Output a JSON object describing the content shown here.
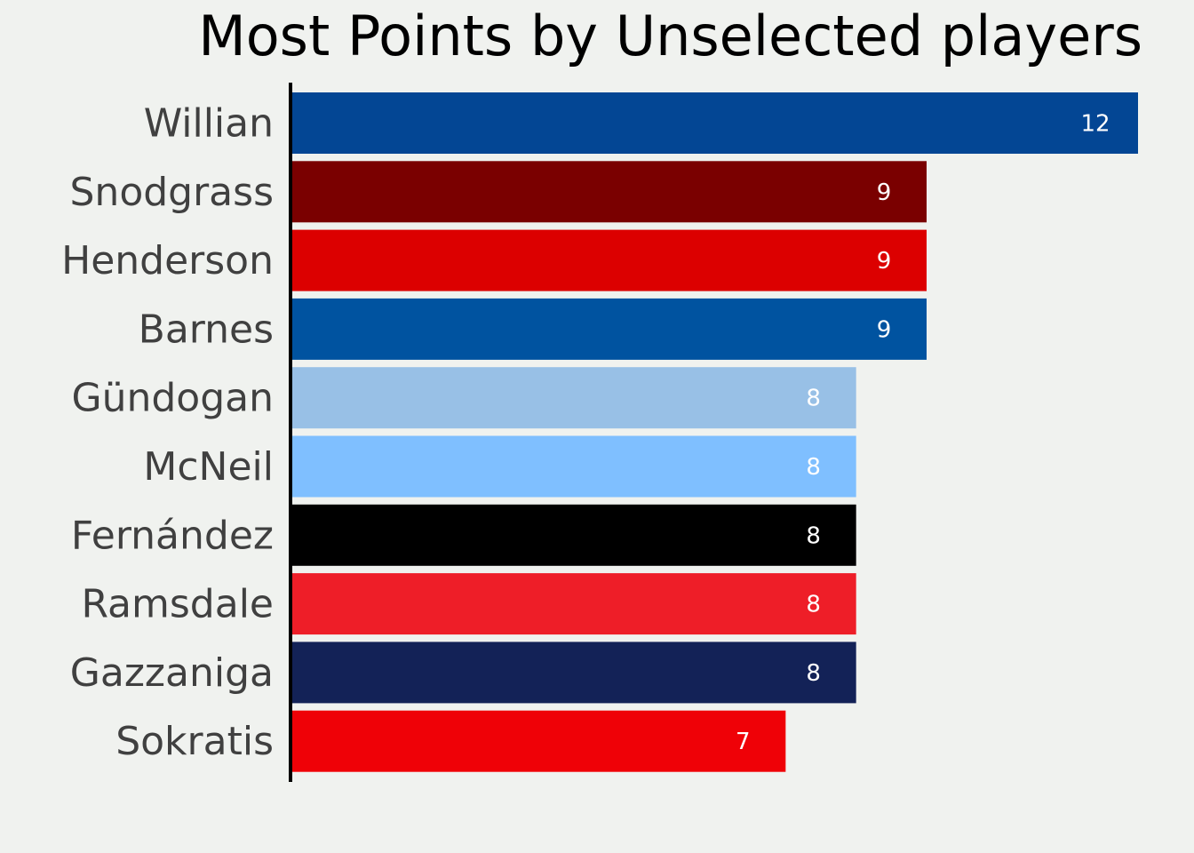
{
  "chart_data": {
    "type": "bar",
    "orientation": "horizontal",
    "title": "Most Points by Unselected players",
    "xlabel": "",
    "ylabel": "",
    "xlim": [
      0,
      12
    ],
    "grid": false,
    "legend": "none",
    "categories": [
      "Willian",
      "Snodgrass",
      "Henderson",
      "Barnes",
      "Gündogan",
      "McNeil",
      "Fernández",
      "Ramsdale",
      "Gazzaniga",
      "Sokratis"
    ],
    "values": [
      12,
      9,
      9,
      9,
      8,
      8,
      8,
      8,
      8,
      7
    ],
    "colors": [
      "#034694",
      "#7a0000",
      "#dc0000",
      "#0053a0",
      "#98c0e6",
      "#7fbfff",
      "#000000",
      "#ee1e28",
      "#132257",
      "#ef0107"
    ],
    "value_labels": [
      "12",
      "9",
      "9",
      "9",
      "8",
      "8",
      "8",
      "8",
      "8",
      "7"
    ]
  }
}
